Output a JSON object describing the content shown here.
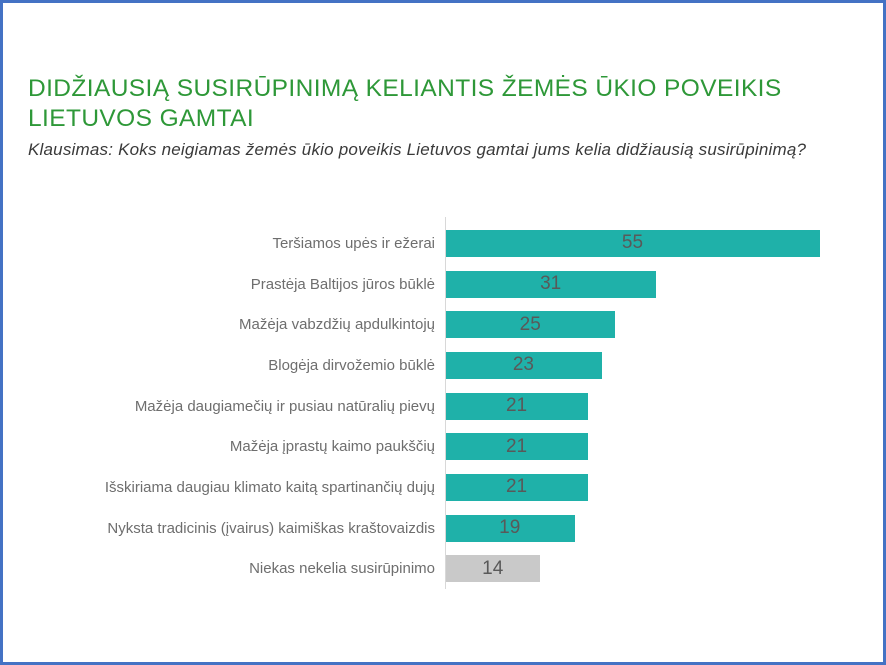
{
  "slide": {
    "background": "#ffffff",
    "border_color": "#4472C4"
  },
  "header": {
    "title_lines": [
      "DIDŽIAUSIĄ SUSIRŪPINIMĄ KELIANTIS ŽEMĖS ŪKIO POVEIKIS",
      "LIETUVOS GAMTAI"
    ],
    "title_color": "#2e9838",
    "subtitle": "Klausimas: Koks neigiamas žemės ūkio poveikis Lietuvos gamtai jums kelia didžiausią susirūpinimą?",
    "subtitle_color": "#3a3a3a"
  },
  "chart_data": {
    "type": "bar",
    "orientation": "horizontal",
    "categories": [
      "Teršiamos upės ir ežerai",
      "Prastėja Baltijos jūros būklė",
      "Mažėja vabzdžių apdulkintojų",
      "Blogėja dirvožemio būklė",
      "Mažėja daugiamečių ir pusiau natūralių pievų",
      "Mažėja įprastų kaimo paukščių",
      "Išskiriama daugiau klimato kaitą spartinančių dujų",
      "Nyksta tradicinis (įvairus) kaimiškas kraštovaizdis",
      "Niekas nekelia susirūpinimo"
    ],
    "values": [
      55,
      31,
      25,
      23,
      21,
      21,
      21,
      19,
      14
    ],
    "xlim": [
      0,
      60
    ],
    "grid": false,
    "legend": "none",
    "data_label_position": "inside-center",
    "bar_color": "#1fb1a9",
    "muted_bar_color": "#c9c9c9",
    "muted_index": 8,
    "value_label_color": "#595959",
    "category_label_color": "#6e6e6e",
    "axis_line_color": "#d8d8d8"
  }
}
